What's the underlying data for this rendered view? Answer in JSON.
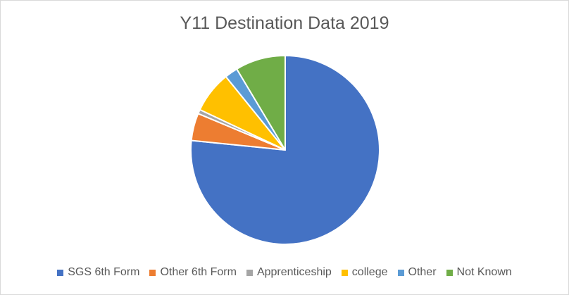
{
  "chart_data": {
    "type": "pie",
    "title": "Y11 Destination Data 2019",
    "categories": [
      "SGS 6th Form",
      "Other 6th Form",
      "Apprenticeship",
      "college",
      "Other",
      "Not Known"
    ],
    "values": [
      75.0,
      4.6,
      0.7,
      7.0,
      2.2,
      8.4
    ],
    "unit": "percent of total (estimated from slice angles)",
    "colors": [
      "#4472c4",
      "#ed7d31",
      "#a5a5a5",
      "#ffc000",
      "#5b9bd5",
      "#70ad47"
    ],
    "start": "12 o'clock, clockwise",
    "legend_position": "bottom"
  }
}
